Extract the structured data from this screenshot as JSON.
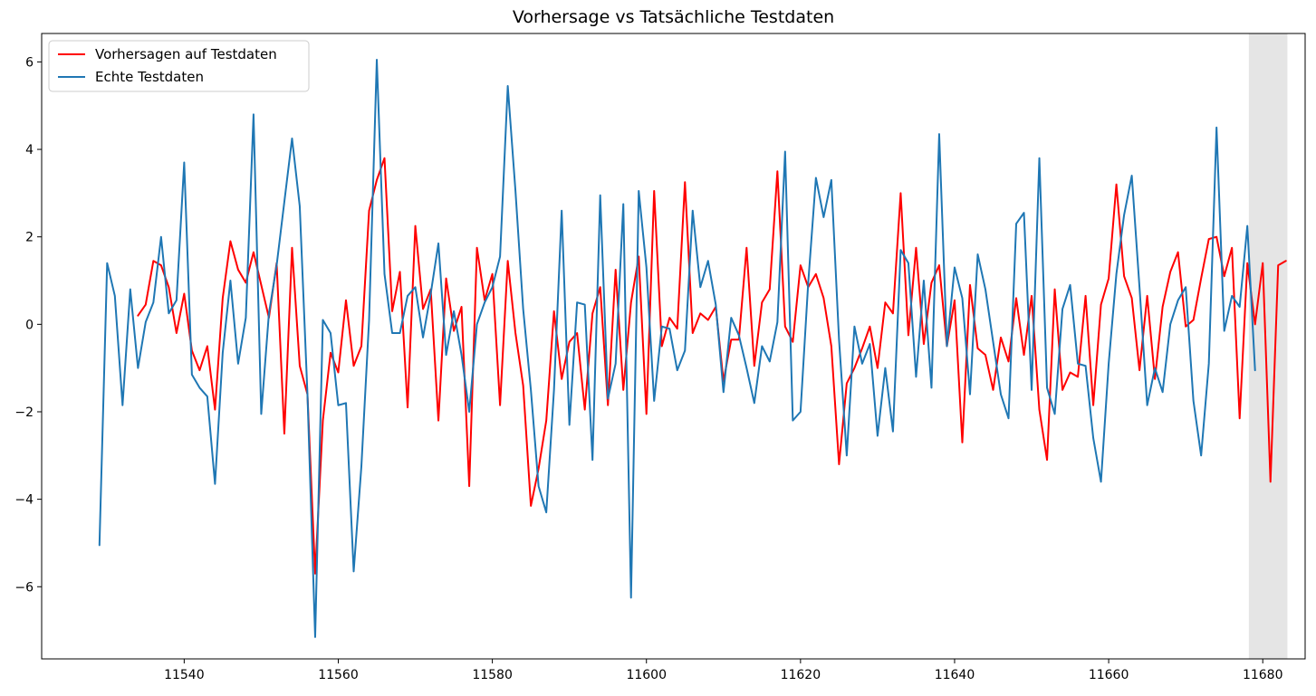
{
  "chart_data": {
    "type": "line",
    "title": "Vorhersage vs Tatsächliche Testdaten",
    "xlabel": "",
    "ylabel": "",
    "xlim": [
      11521.5,
      11685.5
    ],
    "ylim": [
      -7.65,
      6.65
    ],
    "xticks": [
      11540,
      11560,
      11580,
      11600,
      11620,
      11640,
      11660,
      11680
    ],
    "yticks": [
      -6,
      -4,
      -2,
      0,
      2,
      4,
      6
    ],
    "grid": false,
    "legend_position": "upper left",
    "shaded_region": {
      "x_start": 11678.2,
      "x_end": 11683.2,
      "color": "#e5e5e5"
    },
    "series": [
      {
        "name": "Vorhersagen auf Testdaten",
        "color": "#ff0000",
        "x_start": 11534,
        "values": [
          0.2,
          0.45,
          1.45,
          1.35,
          0.85,
          -0.2,
          0.7,
          -0.6,
          -1.05,
          -0.5,
          -1.95,
          0.6,
          1.9,
          1.25,
          0.95,
          1.65,
          0.9,
          0.15,
          1.4,
          -2.5,
          1.75,
          -0.95,
          -1.6,
          -5.7,
          -2.2,
          -0.65,
          -1.1,
          0.55,
          -0.95,
          -0.5,
          2.6,
          3.3,
          3.8,
          0.3,
          1.2,
          -1.9,
          2.25,
          0.35,
          0.8,
          -2.2,
          1.05,
          -0.15,
          0.4,
          -3.7,
          1.75,
          0.55,
          1.15,
          -1.85,
          1.45,
          -0.2,
          -1.4,
          -4.15,
          -3.3,
          -2.2,
          0.3,
          -1.25,
          -0.4,
          -0.2,
          -1.95,
          0.25,
          0.85,
          -1.85,
          1.25,
          -1.5,
          0.5,
          1.55,
          -2.05,
          3.05,
          -0.5,
          0.15,
          -0.1,
          3.25,
          -0.2,
          0.25,
          0.1,
          0.4,
          -1.3,
          -0.35,
          -0.35,
          1.75,
          -0.95,
          0.5,
          0.8,
          3.5,
          -0.05,
          -0.4,
          1.35,
          0.85,
          1.15,
          0.6,
          -0.5,
          -3.2,
          -1.35,
          -1.0,
          -0.55,
          -0.05,
          -1.0,
          0.5,
          0.25,
          3.0,
          -0.25,
          1.75,
          -0.45,
          0.95,
          1.35,
          -0.5,
          0.55,
          -2.7,
          0.9,
          -0.55,
          -0.7,
          -1.5,
          -0.3,
          -0.85,
          0.6,
          -0.7,
          0.65,
          -1.95,
          -3.1,
          0.8,
          -1.5,
          -1.1,
          -1.2,
          0.65,
          -1.85,
          0.45,
          1.05,
          3.2,
          1.1,
          0.6,
          -1.05,
          0.65,
          -1.25,
          0.4,
          1.2,
          1.65,
          -0.05,
          0.1,
          1.05,
          1.95,
          2.0,
          1.1,
          1.75,
          -2.15,
          1.4,
          0.0,
          1.4,
          -3.6,
          1.35,
          1.45
        ]
      },
      {
        "name": "Echte Testdaten",
        "color": "#1f77b4",
        "x_start": 11529,
        "values": [
          -5.05,
          1.4,
          0.65,
          -1.85,
          0.8,
          -1.0,
          0.05,
          0.5,
          2.0,
          0.25,
          0.55,
          3.7,
          -1.15,
          -1.45,
          -1.65,
          -3.65,
          -0.65,
          1.0,
          -0.9,
          0.15,
          4.8,
          -2.05,
          0.25,
          1.35,
          2.8,
          4.25,
          2.7,
          -1.6,
          -7.15,
          0.1,
          -0.2,
          -1.85,
          -1.8,
          -5.65,
          -3.25,
          0.1,
          6.05,
          1.15,
          -0.2,
          -0.2,
          0.65,
          0.85,
          -0.3,
          0.7,
          1.85,
          -0.7,
          0.3,
          -0.7,
          -2.0,
          0.0,
          0.5,
          0.85,
          1.55,
          5.45,
          3.05,
          0.35,
          -1.5,
          -3.7,
          -4.3,
          -1.5,
          2.6,
          -2.3,
          0.5,
          0.45,
          -3.1,
          2.95,
          -1.7,
          -0.9,
          2.75,
          -6.25,
          3.05,
          1.3,
          -1.75,
          -0.05,
          -0.1,
          -1.05,
          -0.6,
          2.6,
          0.85,
          1.45,
          0.45,
          -1.55,
          0.15,
          -0.25,
          -1.0,
          -1.8,
          -0.5,
          -0.85,
          0.05,
          3.95,
          -2.2,
          -2.0,
          0.95,
          3.35,
          2.45,
          3.3,
          -0.35,
          -3.0,
          -0.05,
          -0.9,
          -0.45,
          -2.55,
          -1.0,
          -2.45,
          1.7,
          1.4,
          -1.2,
          1.0,
          -1.45,
          4.35,
          -0.5,
          1.3,
          0.6,
          -1.6,
          1.6,
          0.8,
          -0.4,
          -1.6,
          -2.15,
          2.3,
          2.55,
          -1.5,
          3.8,
          -1.45,
          -2.05,
          0.35,
          0.9,
          -0.9,
          -0.95,
          -2.6,
          -3.6,
          -0.9,
          1.15,
          2.5,
          3.4,
          0.85,
          -1.85,
          -1.0,
          -1.55,
          0.0,
          0.55,
          0.85,
          -1.75,
          -3.0,
          -0.9,
          4.5,
          -0.15,
          0.65,
          0.4,
          2.25,
          -1.05
        ]
      }
    ]
  }
}
